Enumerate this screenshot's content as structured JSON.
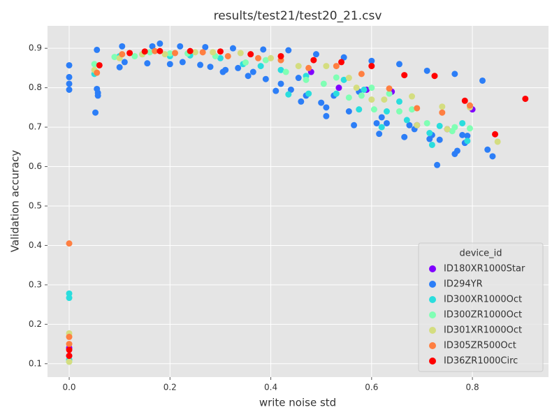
{
  "chart_data": {
    "type": "scatter",
    "title": "results/test21/test20_21.csv",
    "x_label": "write noise std",
    "y_label": "Validation accuracy",
    "xlim": [
      -0.043,
      0.951
    ],
    "ylim": [
      0.066,
      0.957
    ],
    "xticks": [
      {
        "value": 0,
        "label": "0.0"
      },
      0.2,
      0.4,
      0.6,
      0.8
    ],
    "yticks": [
      0.1,
      0.2,
      0.3,
      0.4,
      0.5,
      0.6,
      0.7,
      0.8,
      0.9
    ],
    "grid": true,
    "legend_title": "device_id",
    "legend_position": "lower right",
    "series": [
      {
        "name": "ID180XR1000Star",
        "color": "#8000ff",
        "x": [
          0,
          0,
          0.48,
          0.535,
          0.59,
          0.64,
          0.75,
          0.8,
          0.69
        ],
        "values": [
          0.12,
          0.14,
          0.84,
          0.8,
          0.795,
          0.79,
          0.695,
          0.745,
          0.705
        ]
      },
      {
        "name": "ID294YR",
        "color": "#2c7ef7",
        "x": [
          0,
          0,
          0,
          0,
          0.052,
          0.055,
          0.055,
          0.057,
          0.057,
          0.1,
          0.105,
          0.11,
          0.155,
          0.165,
          0.18,
          0.2,
          0.22,
          0.225,
          0.26,
          0.27,
          0.28,
          0.305,
          0.31,
          0.325,
          0.335,
          0.355,
          0.365,
          0.385,
          0.39,
          0.41,
          0.42,
          0.435,
          0.44,
          0.455,
          0.46,
          0.47,
          0.49,
          0.5,
          0.51,
          0.51,
          0.525,
          0.545,
          0.555,
          0.565,
          0.575,
          0.6,
          0.61,
          0.615,
          0.62,
          0.63,
          0.655,
          0.665,
          0.675,
          0.685,
          0.71,
          0.715,
          0.72,
          0.73,
          0.735,
          0.765,
          0.765,
          0.77,
          0.78,
          0.785,
          0.79,
          0.82,
          0.83,
          0.84
        ],
        "values": [
          0.857,
          0.827,
          0.81,
          0.795,
          0.737,
          0.896,
          0.797,
          0.78,
          0.787,
          0.852,
          0.905,
          0.865,
          0.862,
          0.905,
          0.912,
          0.86,
          0.905,
          0.865,
          0.858,
          0.903,
          0.853,
          0.84,
          0.845,
          0.9,
          0.85,
          0.83,
          0.84,
          0.897,
          0.822,
          0.792,
          0.81,
          0.895,
          0.795,
          0.825,
          0.765,
          0.78,
          0.885,
          0.762,
          0.75,
          0.728,
          0.78,
          0.877,
          0.74,
          0.705,
          0.79,
          0.868,
          0.71,
          0.683,
          0.725,
          0.71,
          0.86,
          0.675,
          0.705,
          0.695,
          0.843,
          0.67,
          0.68,
          0.604,
          0.668,
          0.835,
          0.632,
          0.64,
          0.68,
          0.66,
          0.678,
          0.818,
          0.643,
          0.626
        ]
      },
      {
        "name": "ID300XR1000Oct",
        "color": "#2adddd",
        "x": [
          0,
          0,
          0,
          0.05,
          0.1,
          0.145,
          0.2,
          0.24,
          0.3,
          0.345,
          0.38,
          0.42,
          0.435,
          0.47,
          0.475,
          0.53,
          0.545,
          0.575,
          0.585,
          0.62,
          0.63,
          0.655,
          0.67,
          0.715,
          0.72,
          0.735,
          0.78,
          0.79
        ],
        "values": [
          0.278,
          0.267,
          0.11,
          0.835,
          0.88,
          0.885,
          0.88,
          0.882,
          0.875,
          0.86,
          0.855,
          0.845,
          0.783,
          0.83,
          0.785,
          0.785,
          0.82,
          0.745,
          0.795,
          0.7,
          0.74,
          0.765,
          0.718,
          0.685,
          0.655,
          0.703,
          0.71,
          0.665
        ]
      },
      {
        "name": "ID300ZR1000Oct",
        "color": "#80ffb4",
        "x": [
          0,
          0.05,
          0.09,
          0.13,
          0.16,
          0.2,
          0.235,
          0.29,
          0.35,
          0.39,
          0.43,
          0.47,
          0.505,
          0.53,
          0.555,
          0.58,
          0.6,
          0.605,
          0.635,
          0.655,
          0.68,
          0.71,
          0.76,
          0.765,
          0.795
        ],
        "values": [
          0.105,
          0.86,
          0.878,
          0.88,
          0.89,
          0.887,
          0.887,
          0.88,
          0.864,
          0.87,
          0.84,
          0.82,
          0.81,
          0.826,
          0.775,
          0.78,
          0.8,
          0.745,
          0.785,
          0.74,
          0.745,
          0.71,
          0.69,
          0.7,
          0.697
        ]
      },
      {
        "name": "ID301XR1000Oct",
        "color": "#d4dd80",
        "x": [
          0,
          0,
          0,
          0.05,
          0.1,
          0.145,
          0.19,
          0.25,
          0.285,
          0.34,
          0.4,
          0.455,
          0.51,
          0.555,
          0.57,
          0.6,
          0.625,
          0.68,
          0.69,
          0.74,
          0.75,
          0.795,
          0.85
        ],
        "values": [
          0.177,
          0.17,
          0.105,
          0.845,
          0.875,
          0.885,
          0.885,
          0.89,
          0.89,
          0.888,
          0.875,
          0.855,
          0.855,
          0.825,
          0.8,
          0.77,
          0.77,
          0.778,
          0.705,
          0.752,
          0.695,
          0.75,
          0.663
        ]
      },
      {
        "name": "ID305ZR500Oct",
        "color": "#ff7f41",
        "x": [
          0,
          0,
          0,
          0.055,
          0.105,
          0.17,
          0.21,
          0.265,
          0.315,
          0.375,
          0.42,
          0.475,
          0.53,
          0.58,
          0.635,
          0.69,
          0.74,
          0.795
        ],
        "values": [
          0.405,
          0.168,
          0.15,
          0.838,
          0.885,
          0.893,
          0.888,
          0.89,
          0.88,
          0.875,
          0.87,
          0.85,
          0.855,
          0.835,
          0.798,
          0.748,
          0.737,
          0.755
        ]
      },
      {
        "name": "ID36ZR1000Circ",
        "color": "#ff0000",
        "x": [
          0,
          0,
          0.06,
          0.12,
          0.15,
          0.18,
          0.24,
          0.3,
          0.36,
          0.42,
          0.485,
          0.54,
          0.6,
          0.665,
          0.725,
          0.785,
          0.845,
          0.905
        ],
        "values": [
          0.12,
          0.135,
          0.857,
          0.888,
          0.892,
          0.893,
          0.893,
          0.892,
          0.885,
          0.88,
          0.87,
          0.865,
          0.855,
          0.832,
          0.83,
          0.767,
          0.682,
          0.772
        ]
      }
    ]
  }
}
